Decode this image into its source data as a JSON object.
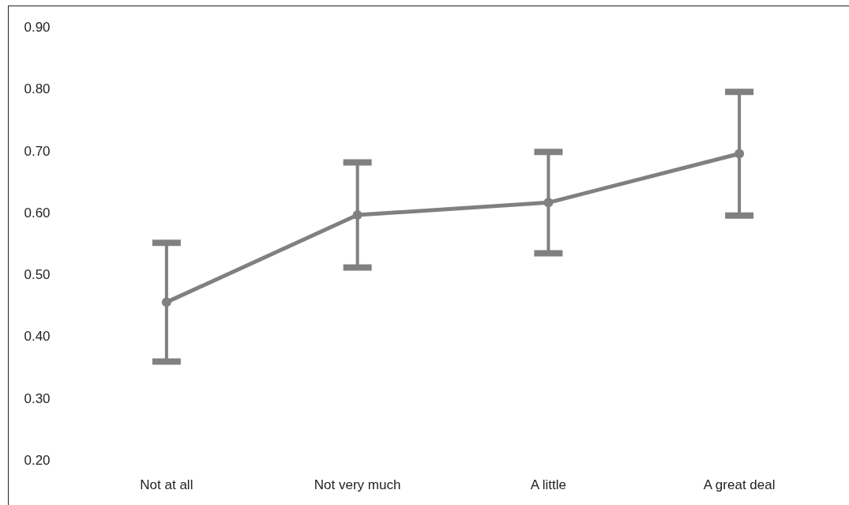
{
  "chart_data": {
    "type": "line",
    "categories": [
      "Not at all",
      "Not very much",
      "A little",
      "A great deal"
    ],
    "series": [
      {
        "color": "#808080",
        "values": [
          0.455,
          0.596,
          0.616,
          0.695
        ],
        "errors": [
          0.096,
          0.085,
          0.082,
          0.1
        ]
      }
    ],
    "ylim": [
      0.2,
      0.9
    ],
    "yticks": [
      {
        "value": 0.2,
        "label": "0.20"
      },
      {
        "value": 0.3,
        "label": "0.30"
      },
      {
        "value": 0.4,
        "label": "0.40"
      },
      {
        "value": 0.5,
        "label": "0.50"
      },
      {
        "value": 0.6,
        "label": "0.60"
      },
      {
        "value": 0.7,
        "label": "0.70"
      },
      {
        "value": 0.8,
        "label": "0.80"
      },
      {
        "value": 0.9,
        "label": "0.90"
      }
    ],
    "grid": false,
    "marker": "circle",
    "line_style": "solid"
  }
}
